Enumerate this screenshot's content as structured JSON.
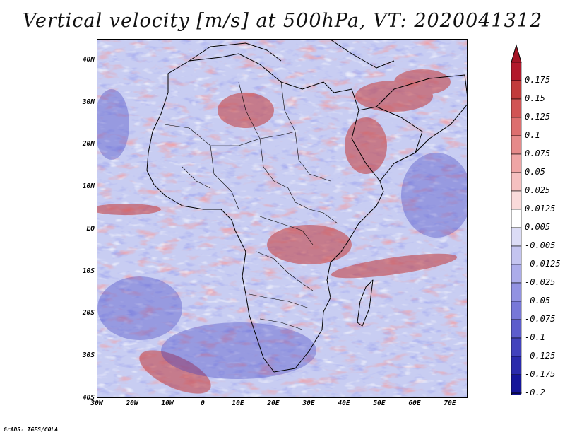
{
  "title": "Vertical velocity [m/s] at 500hPa, VT: 2020041312",
  "credit": "GrADS: IGES/COLA",
  "map": {
    "lat_labels": [
      "40N",
      "30N",
      "20N",
      "10N",
      "EQ",
      "10S",
      "20S",
      "30S",
      "40S"
    ],
    "lon_labels": [
      "30W",
      "20W",
      "10W",
      "0",
      "10E",
      "20E",
      "30E",
      "40E",
      "50E",
      "60E",
      "70E"
    ],
    "extent": {
      "lon_min": -30,
      "lon_max": 75,
      "lat_min": -40,
      "lat_max": 45
    }
  },
  "colorbar": {
    "labels": [
      "0.175",
      "0.15",
      "0.125",
      "0.1",
      "0.075",
      "0.05",
      "0.025",
      "0.0125",
      "0.005",
      "-0.005",
      "-0.0125",
      "-0.025",
      "-0.05",
      "-0.075",
      "-0.1",
      "-0.125",
      "-0.175",
      "-0.2"
    ],
    "colors": [
      "#b2182b",
      "#c23b3b",
      "#d15454",
      "#dd6e6e",
      "#e68a8a",
      "#efa5a5",
      "#f5c0c0",
      "#fadada",
      "#ffffff",
      "#dcdcf6",
      "#c4c4f0",
      "#acacea",
      "#9292e2",
      "#7777d8",
      "#5c5ccc",
      "#4242bd",
      "#2a2aac",
      "#15159a"
    ],
    "top_color": "#a51526",
    "bottom_color": "#121294"
  },
  "colors": {
    "land_outline": "#000000",
    "base_field": "#c8cdf2"
  }
}
